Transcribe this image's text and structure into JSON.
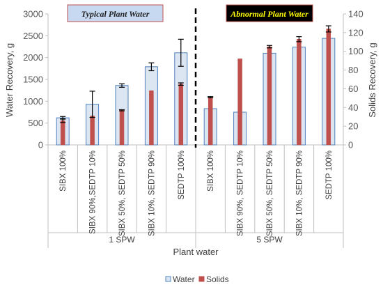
{
  "chart_data": {
    "type": "bar",
    "categories": [
      "SIBX 100%",
      "SIBX 90%,SEDTP 10%",
      "SIBX 50%, SEDTP 50%",
      "SIBX 10%, SEDTP 90%",
      "SEDTP 100%",
      "SIBX 100%",
      "SIBX 90%, SEDTP 10%",
      "SIBX 50%, SEDTP 50%",
      "SIBX 10%, SEDTP 90%",
      "SEDTP 100%"
    ],
    "groups": [
      {
        "label": "1 SPW",
        "start": 0,
        "end": 4
      },
      {
        "label": "5 SPW",
        "start": 5,
        "end": 9
      }
    ],
    "xlabel": "Plant water",
    "ylabel": "Water Recovery, g",
    "y2label": "Solids Recovery, g",
    "ylim": [
      0,
      3000
    ],
    "y2lim": [
      0,
      140
    ],
    "yticks": [
      "0",
      "500",
      "1000",
      "1500",
      "2000",
      "2500",
      "3000"
    ],
    "y2ticks": [
      "0",
      "20",
      "40",
      "60",
      "80",
      "100",
      "120",
      "140"
    ],
    "series": [
      {
        "name": "Water",
        "axis": "left",
        "values": [
          620,
          930,
          1360,
          1790,
          2110,
          830,
          750,
          2100,
          2240,
          2440
        ],
        "errors": [
          30,
          300,
          40,
          90,
          310,
          0,
          0,
          0,
          0,
          0
        ],
        "fill": "#DCE6F2",
        "stroke": "#4F81BD"
      },
      {
        "name": "Solids",
        "axis": "right",
        "values": [
          26,
          31,
          37,
          58,
          65,
          51,
          92,
          105,
          113,
          124
        ],
        "errors": [
          2,
          0,
          0.6,
          0,
          1.3,
          0.6,
          0,
          1.3,
          2.7,
          3.3
        ],
        "fill": "#C0504D",
        "stroke": "#C0504D"
      }
    ],
    "annotations": [
      {
        "text": "Typical Plant Water"
      },
      {
        "text": "Abnormal Plant Water"
      }
    ],
    "legend": {
      "position": "bottom"
    },
    "grid": false
  }
}
